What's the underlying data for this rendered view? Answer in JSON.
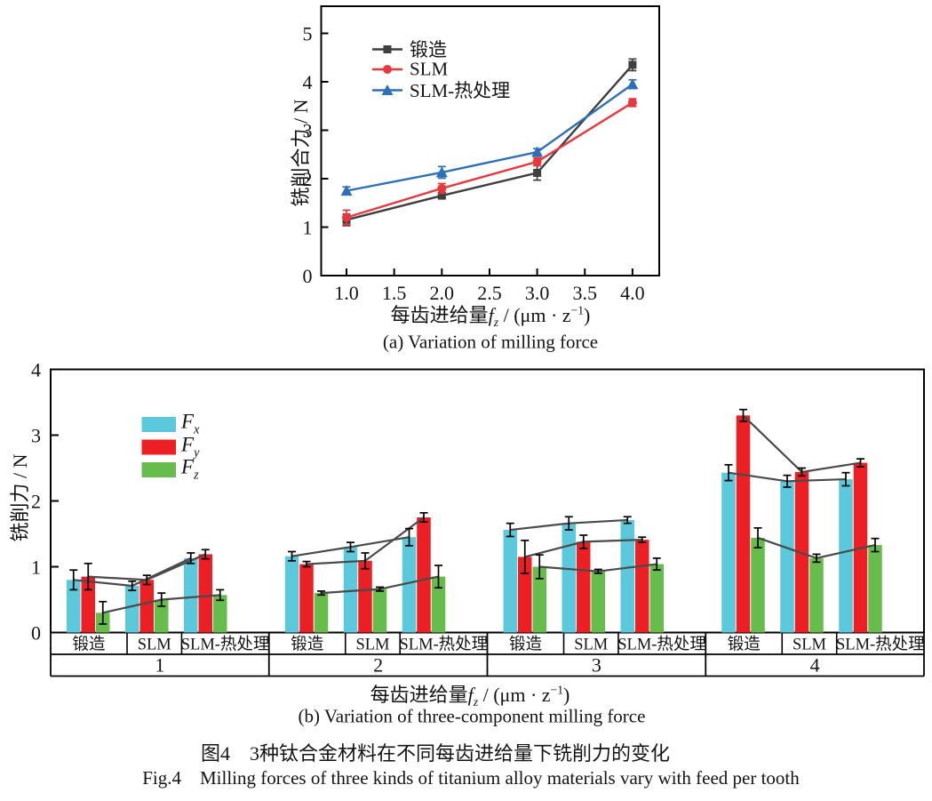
{
  "colors": {
    "forged": "#3F3F3F",
    "slm": "#E8383E",
    "slm_heat_treated": "#2D6FB8",
    "fx_bar": "#5BC8DC",
    "fy_bar": "#EC2024",
    "fz_bar": "#66BD4B",
    "connector_line": "#4A4A4A",
    "axis": "#000000"
  },
  "feed_label": {
    "pre": "每齿进给量",
    "var": "f",
    "sub": "z",
    "mid": " / (μm · z",
    "sup": "−1",
    "end": ")"
  },
  "legend_b": {
    "items": [
      {
        "base": "F",
        "sub": "x"
      },
      {
        "base": "F",
        "sub": "y"
      },
      {
        "base": "F",
        "sub": "z"
      }
    ]
  },
  "captions": {
    "zh": "图4　3种钛合金材料在不同每齿进给量下铣削力的变化",
    "en": "Fig.4　Milling forces of three kinds of titanium alloy materials vary with feed per tooth"
  },
  "chart_data": [
    {
      "type": "line",
      "title": "(a) Variation of milling force",
      "xlabel": "每齿进给量f_z / (μm·z⁻¹)",
      "ylabel": "铣削合力 / N",
      "xlim": [
        0.73,
        4.28
      ],
      "ylim": [
        0,
        5
      ],
      "grid": false,
      "legend_position": "upper-left-inside",
      "xticks": [
        1,
        1.5,
        2,
        2.5,
        3,
        3.5,
        4
      ],
      "xtick_labels": [
        "1.0",
        "1.5",
        "2.0",
        "2.5",
        "3.0",
        "3.5",
        "4.0"
      ],
      "yticks": [
        0,
        1,
        2,
        3,
        4,
        5
      ],
      "x": [
        1,
        2,
        3,
        4
      ],
      "series": [
        {
          "name": "锻造",
          "marker": "square",
          "color": "#3F3F3F",
          "values": [
            1.15,
            1.65,
            2.12,
            4.35
          ],
          "errors": [
            0.12,
            0.05,
            0.15,
            0.12
          ]
        },
        {
          "name": "SLM",
          "marker": "circle",
          "color": "#E8383E",
          "values": [
            1.2,
            1.8,
            2.35,
            3.57
          ],
          "errors": [
            0.15,
            0.1,
            0.08,
            0.08
          ]
        },
        {
          "name": "SLM-热处理",
          "marker": "triangle",
          "color": "#2D6FB8",
          "values": [
            1.75,
            2.13,
            2.55,
            3.95
          ],
          "errors": [
            0.08,
            0.12,
            0.07,
            0.09
          ]
        }
      ]
    },
    {
      "type": "bar",
      "title": "(b) Variation of three-component milling force",
      "xlabel": "每齿进给量f_z / (μm·z⁻¹)",
      "ylabel": "铣削力 / N",
      "ylim": [
        0,
        4
      ],
      "grid": false,
      "legend_position": "upper-left-inside",
      "yticks": [
        0,
        1,
        2,
        3,
        4
      ],
      "groups": [
        "1",
        "2",
        "3",
        "4"
      ],
      "materials": [
        "锻造",
        "SLM",
        "SLM-热处理"
      ],
      "connector_lines": true,
      "series": [
        {
          "name": "Fx",
          "color": "#5BC8DC",
          "values": [
            [
              0.8,
              0.71,
              1.13
            ],
            [
              1.16,
              1.3,
              1.45
            ],
            [
              1.56,
              1.66,
              1.71
            ],
            [
              2.43,
              2.3,
              2.33
            ]
          ],
          "errors": [
            [
              0.15,
              0.07,
              0.08
            ],
            [
              0.07,
              0.07,
              0.13
            ],
            [
              0.1,
              0.1,
              0.05
            ],
            [
              0.12,
              0.09,
              0.1
            ]
          ]
        },
        {
          "name": "Fy",
          "color": "#EC2024",
          "values": [
            [
              0.85,
              0.8,
              1.19
            ],
            [
              1.04,
              1.09,
              1.75
            ],
            [
              1.15,
              1.38,
              1.41
            ],
            [
              3.3,
              2.44,
              2.58
            ]
          ],
          "errors": [
            [
              0.2,
              0.07,
              0.07
            ],
            [
              0.04,
              0.12,
              0.07
            ],
            [
              0.25,
              0.1,
              0.04
            ],
            [
              0.09,
              0.06,
              0.06
            ]
          ]
        },
        {
          "name": "Fz",
          "color": "#66BD4B",
          "values": [
            [
              0.3,
              0.5,
              0.57
            ],
            [
              0.6,
              0.66,
              0.85
            ],
            [
              1.0,
              0.93,
              1.04
            ],
            [
              1.44,
              1.13,
              1.33
            ]
          ],
          "errors": [
            [
              0.17,
              0.1,
              0.08
            ],
            [
              0.03,
              0.03,
              0.17
            ],
            [
              0.18,
              0.03,
              0.09
            ],
            [
              0.15,
              0.06,
              0.1
            ]
          ]
        }
      ]
    }
  ]
}
